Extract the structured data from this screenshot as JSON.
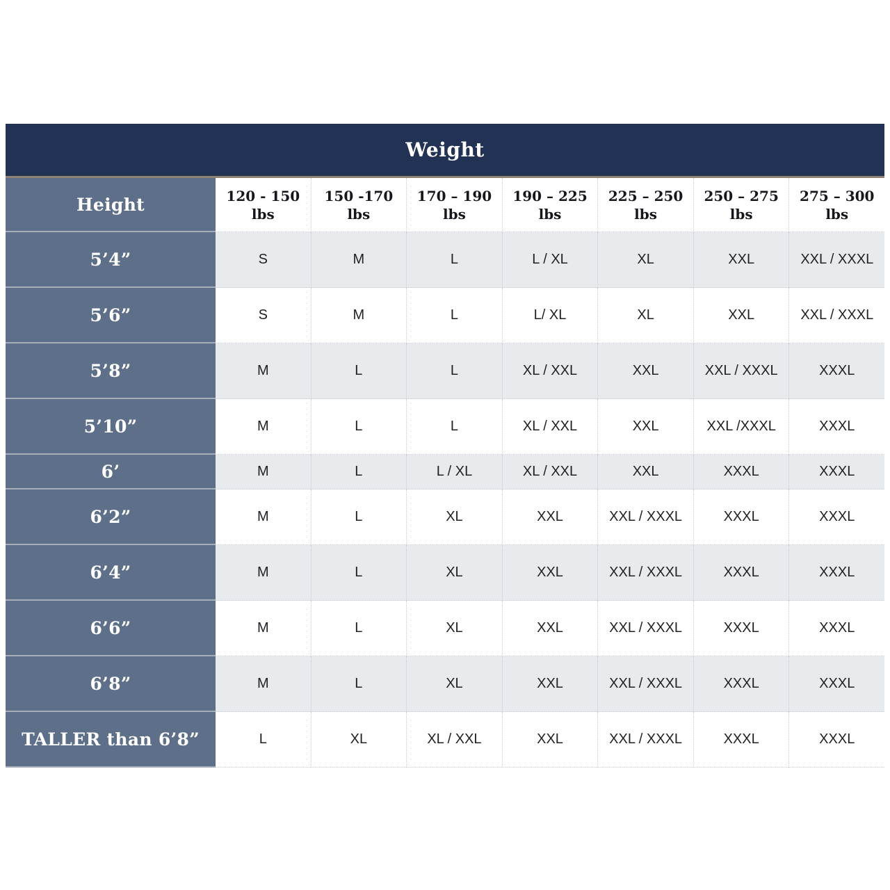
{
  "table": {
    "title": "Weight",
    "corner_label": "Height",
    "columns": [
      {
        "range": "120 - 150",
        "unit": "lbs"
      },
      {
        "range": "150 -170",
        "unit": "lbs"
      },
      {
        "range": "170 – 190",
        "unit": "lbs"
      },
      {
        "range": "190 – 225",
        "unit": "lbs"
      },
      {
        "range": "225 – 250",
        "unit": "lbs"
      },
      {
        "range": "250 – 275",
        "unit": "lbs"
      },
      {
        "range": "275 – 300",
        "unit": "lbs"
      }
    ],
    "rows": [
      {
        "height": "5’4”",
        "shaded": true,
        "cells": [
          "S",
          "M",
          "L",
          "L / XL",
          "XL",
          "XXL",
          "XXL / XXXL"
        ]
      },
      {
        "height": "5’6”",
        "shaded": false,
        "cells": [
          "S",
          "M",
          "L",
          "L/ XL",
          "XL",
          "XXL",
          "XXL / XXXL"
        ]
      },
      {
        "height": "5’8”",
        "shaded": true,
        "cells": [
          "M",
          "L",
          "L",
          "XL / XXL",
          "XXL",
          "XXL / XXXL",
          "XXXL"
        ]
      },
      {
        "height": "5’10”",
        "shaded": false,
        "cells": [
          "M",
          "L",
          "L",
          "XL / XXL",
          "XXL",
          "XXL /XXXL",
          "XXXL"
        ]
      },
      {
        "height": "6’",
        "shaded": true,
        "cells": [
          "M",
          "L",
          "L / XL",
          "XL / XXL",
          "XXL",
          "XXXL",
          "XXXL"
        ]
      },
      {
        "height": "6’2”",
        "shaded": false,
        "cells": [
          "M",
          "L",
          "XL",
          "XXL",
          "XXL / XXXL",
          "XXXL",
          "XXXL"
        ]
      },
      {
        "height": "6’4”",
        "shaded": true,
        "cells": [
          "M",
          "L",
          "XL",
          "XXL",
          "XXL / XXXL",
          "XXXL",
          "XXXL"
        ]
      },
      {
        "height": "6’6”",
        "shaded": false,
        "cells": [
          "M",
          "L",
          "XL",
          "XXL",
          "XXL / XXXL",
          "XXXL",
          "XXXL"
        ]
      },
      {
        "height": "6’8”",
        "shaded": true,
        "cells": [
          "M",
          "L",
          "XL",
          "XXL",
          "XXL / XXXL",
          "XXXL",
          "XXXL"
        ]
      },
      {
        "height": "TALLER than 6’8”",
        "shaded": false,
        "cells": [
          "L",
          "XL",
          "XL / XXL",
          "XXL",
          "XXL / XXXL",
          "XXXL",
          "XXXL"
        ]
      }
    ]
  },
  "chart_data": {
    "type": "table",
    "title": "Weight",
    "corner_label": "Height",
    "columns": [
      "120 - 150 lbs",
      "150 -170 lbs",
      "170 – 190 lbs",
      "190 – 225 lbs",
      "225 – 250 lbs",
      "250 – 275 lbs",
      "275 – 300 lbs"
    ],
    "rows": [
      {
        "height": "5’4”",
        "sizes": [
          "S",
          "M",
          "L",
          "L / XL",
          "XL",
          "XXL",
          "XXL / XXXL"
        ]
      },
      {
        "height": "5’6”",
        "sizes": [
          "S",
          "M",
          "L",
          "L/ XL",
          "XL",
          "XXL",
          "XXL / XXXL"
        ]
      },
      {
        "height": "5’8”",
        "sizes": [
          "M",
          "L",
          "L",
          "XL / XXL",
          "XXL",
          "XXL / XXXL",
          "XXXL"
        ]
      },
      {
        "height": "5’10”",
        "sizes": [
          "M",
          "L",
          "L",
          "XL / XXL",
          "XXL",
          "XXL /XXXL",
          "XXXL"
        ]
      },
      {
        "height": "6’",
        "sizes": [
          "M",
          "L",
          "L / XL",
          "XL / XXL",
          "XXL",
          "XXXL",
          "XXXL"
        ]
      },
      {
        "height": "6’2”",
        "sizes": [
          "M",
          "L",
          "XL",
          "XXL",
          "XXL / XXXL",
          "XXXL",
          "XXXL"
        ]
      },
      {
        "height": "6’4”",
        "sizes": [
          "M",
          "L",
          "XL",
          "XXL",
          "XXL / XXXL",
          "XXXL",
          "XXXL"
        ]
      },
      {
        "height": "6’6”",
        "sizes": [
          "M",
          "L",
          "XL",
          "XXL",
          "XXL / XXXL",
          "XXXL",
          "XXXL"
        ]
      },
      {
        "height": "6’8”",
        "sizes": [
          "M",
          "L",
          "XL",
          "XXL",
          "XXL / XXXL",
          "XXXL",
          "XXXL"
        ]
      },
      {
        "height": "TALLER than 6’8”",
        "sizes": [
          "L",
          "XL",
          "XL / XXL",
          "XXL",
          "XXL / XXXL",
          "XXXL",
          "XXXL"
        ]
      }
    ]
  },
  "colors": {
    "banner_navy": "#223254",
    "banner_underline_tan": "#8e8272",
    "height_column_slate": "#5e7089",
    "slate_divider": "#a7aebb",
    "shaded_row": "#e8ebee",
    "white_row": "#ffffff",
    "dotted_grid": "#c9cdd3",
    "cell_text": "#1f2023",
    "header_text": "#16161d",
    "title_text": "#ffffff"
  }
}
